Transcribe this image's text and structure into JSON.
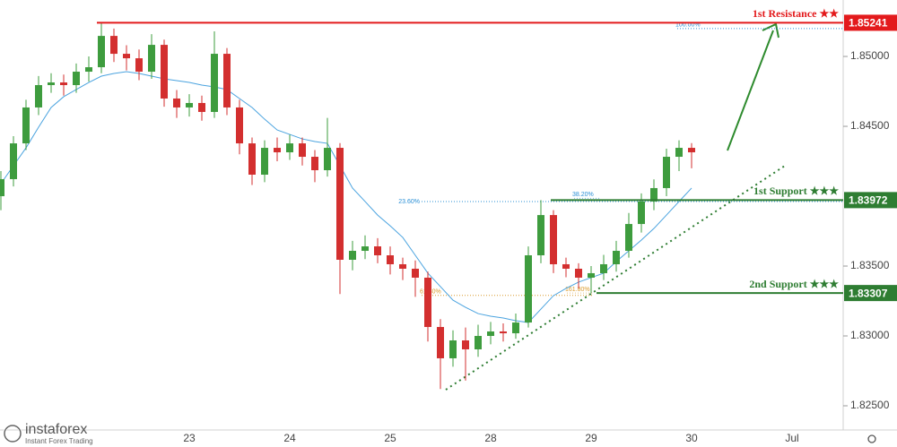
{
  "chart_data": {
    "type": "candlestick",
    "categories": [
      null,
      null,
      null,
      null,
      null,
      null,
      null,
      null,
      null,
      null,
      null,
      null,
      null,
      null,
      null,
      "23",
      null,
      null,
      null,
      null,
      null,
      null,
      null,
      "24",
      null,
      null,
      null,
      null,
      null,
      null,
      null,
      "25",
      null,
      null,
      null,
      null,
      null,
      null,
      null,
      "28",
      null,
      null,
      null,
      null,
      null,
      null,
      null,
      "29",
      null,
      null,
      null,
      null,
      null,
      null,
      null,
      "30",
      null,
      null,
      null,
      null,
      null,
      null,
      null,
      "Jul"
    ],
    "open": [
      1.84,
      1.84122,
      1.84378,
      1.84635,
      1.84795,
      1.84814,
      1.84795,
      1.84891,
      1.84923,
      1.85147,
      1.85019,
      1.84987,
      1.84891,
      1.85083,
      1.84699,
      1.84635,
      1.84667,
      1.84603,
      1.85019,
      1.84635,
      1.84378,
      1.84154,
      1.84346,
      1.84314,
      1.84378,
      1.84282,
      1.84186,
      1.84346,
      1.83545,
      1.83609,
      1.83641,
      1.83577,
      1.83513,
      1.83481,
      1.83417,
      1.83064,
      1.8284,
      1.82968,
      1.82904,
      1.83,
      1.83032,
      1.83019,
      1.83096,
      1.83577,
      1.83865,
      1.83513,
      1.83481,
      1.83417,
      1.83449,
      1.83513,
      1.83609,
      1.83801,
      1.83962,
      1.84058,
      1.84282,
      1.84346,
      null,
      null,
      null,
      null,
      null,
      null,
      null,
      null
    ],
    "high": [
      1.8418,
      1.8443,
      1.8469,
      1.8486,
      1.8488,
      1.8487,
      1.8495,
      1.85,
      1.85241,
      1.852,
      1.8508,
      1.8505,
      1.8516,
      1.8512,
      1.8476,
      1.8473,
      1.8472,
      1.8518,
      1.8506,
      1.8469,
      1.8442,
      1.844,
      1.8442,
      1.8444,
      1.8442,
      1.8433,
      1.8456,
      1.8438,
      1.8368,
      1.8372,
      1.837,
      1.8364,
      1.8356,
      1.8354,
      1.8346,
      1.8312,
      1.8304,
      1.8306,
      1.8308,
      1.831,
      1.8309,
      1.8316,
      1.8364,
      1.83972,
      1.839,
      1.8356,
      1.8352,
      1.835,
      1.8358,
      1.8368,
      1.8388,
      1.8402,
      1.8412,
      1.8434,
      1.844,
      1.8438,
      null,
      null,
      null,
      null,
      null,
      null,
      null,
      null
    ],
    "low": [
      1.839,
      1.8407,
      1.8433,
      1.8458,
      1.8474,
      1.8472,
      1.8474,
      1.8482,
      1.8488,
      1.8496,
      1.849,
      1.8483,
      1.8484,
      1.8464,
      1.8456,
      1.8457,
      1.8454,
      1.8456,
      1.8458,
      1.843,
      1.8408,
      1.841,
      1.8425,
      1.8426,
      1.8422,
      1.841,
      1.8414,
      1.833,
      1.8347,
      1.8355,
      1.8352,
      1.8344,
      1.834,
      1.8328,
      1.8296,
      1.8262,
      1.8278,
      1.8268,
      1.8285,
      1.8294,
      1.8296,
      1.8298,
      1.8306,
      1.8352,
      1.8345,
      1.8342,
      1.8334,
      1.83307,
      1.834,
      1.8346,
      1.8356,
      1.8374,
      1.839,
      1.84,
      1.8418,
      1.842,
      null,
      null,
      null,
      null,
      null,
      null,
      null,
      null
    ],
    "close": [
      1.84122,
      1.84378,
      1.84635,
      1.84795,
      1.84814,
      1.84795,
      1.84891,
      1.84923,
      1.85147,
      1.85019,
      1.84987,
      1.84891,
      1.85083,
      1.84699,
      1.84635,
      1.84667,
      1.84603,
      1.85019,
      1.84635,
      1.84378,
      1.84154,
      1.84346,
      1.84314,
      1.84378,
      1.84282,
      1.84186,
      1.84346,
      1.83545,
      1.83609,
      1.83641,
      1.83577,
      1.83513,
      1.83481,
      1.83417,
      1.83064,
      1.8284,
      1.82968,
      1.82904,
      1.83,
      1.83032,
      1.83019,
      1.83096,
      1.83577,
      1.83865,
      1.83513,
      1.83481,
      1.83417,
      1.83449,
      1.83513,
      1.83609,
      1.83801,
      1.83962,
      1.84058,
      1.84282,
      1.84346,
      1.84314,
      null,
      null,
      null,
      null,
      null,
      null,
      null,
      null
    ],
    "up_color": "#3e9c3e",
    "down_color": "#d32f2f",
    "moving_average": {
      "color": "#4aa3df",
      "values": [
        1.8409,
        1.84218,
        1.84346,
        1.84494,
        1.84635,
        1.84712,
        1.84763,
        1.84814,
        1.84859,
        1.84878,
        1.84891,
        1.84878,
        1.84859,
        1.8484,
        1.84827,
        1.84814,
        1.84795,
        1.84782,
        1.84763,
        1.84699,
        1.84635,
        1.84551,
        1.84474,
        1.84442,
        1.8441,
        1.84391,
        1.84378,
        1.84218,
        1.84058,
        1.83962,
        1.83865,
        1.83788,
        1.83705,
        1.83577,
        1.83449,
        1.83353,
        1.83256,
        1.83205,
        1.8316,
        1.83141,
        1.83128,
        1.83109,
        1.83096,
        1.83192,
        1.83288,
        1.8334,
        1.83385,
        1.83417,
        1.83449,
        1.83532,
        1.83609,
        1.83686,
        1.83769,
        1.83865,
        1.83962,
        1.84058,
        null,
        null,
        null,
        null,
        null,
        null,
        null,
        null
      ]
    },
    "levels": [
      {
        "name": "1st Resistance ★★",
        "value": 1.85241,
        "color": "#e31a1c"
      },
      {
        "name": "1st Support ★★★",
        "value": 1.83972,
        "color": "#2e7d32"
      },
      {
        "name": "2nd Support ★★★",
        "value": 1.83307,
        "color": "#2e7d32"
      }
    ],
    "fib_levels": [
      {
        "label": "100.00%",
        "value": 1.852,
        "color": "#2a8fd6"
      },
      {
        "label": "23.60%",
        "value": 1.83962,
        "color": "#2a8fd6"
      },
      {
        "label": "38.20%",
        "value": 1.83985,
        "color": "#2a8fd6"
      },
      {
        "label": "61.80%",
        "value": 1.8329,
        "color": "#d99a2b"
      },
      {
        "label": "161.80%",
        "value": 1.83307,
        "color": "#d99a2b"
      }
    ],
    "ylim": [
      1.82327,
      1.85404
    ],
    "yticks": [
      {
        "value": 1.85,
        "label": "1.85000"
      },
      {
        "value": 1.845,
        "label": "1.84500"
      },
      {
        "value": 1.835,
        "label": "1.83500"
      },
      {
        "value": 1.83,
        "label": "1.83000"
      },
      {
        "value": 1.825,
        "label": "1.82500"
      }
    ],
    "logo": {
      "name": "instaforex",
      "tagline": "Instant Forex Trading"
    }
  }
}
